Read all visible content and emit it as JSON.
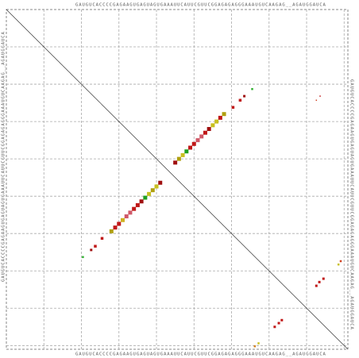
{
  "chart_data": {
    "type": "dotplot",
    "sequence_top": "GAUGUCACCCCGAGAAGUGAGUAGUGAAAUUCAUUCGUUCGGAGAGAGGGAAAUGUCAAGAG__AGAUGGAUCA",
    "sequence_side": "GAUGUCACCCCGAGAAGUGAGUAGUGAAAUUCAUUCGUUCGGAGAGAGGGAAAUGUCAAGAG__AGAUGGAUCA",
    "xlim": [
      0,
      91
    ],
    "ylim": [
      0,
      91
    ],
    "xticks": [
      10,
      20,
      30,
      40,
      50,
      60,
      70,
      80,
      90
    ],
    "yticks": [
      10,
      20,
      30,
      40,
      50,
      60,
      70,
      80,
      90
    ],
    "grid": true,
    "x": [
      45,
      46,
      47,
      48,
      49,
      50,
      51,
      52,
      53,
      54,
      55,
      56,
      57,
      58,
      60.4,
      62.3,
      63.4,
      65.5,
      28,
      29,
      30,
      31,
      32,
      33,
      34,
      35,
      36,
      37,
      38,
      39,
      40,
      41,
      25.5,
      23.7,
      22.6,
      20.4,
      82.6,
      83.4,
      84.5,
      89.1,
      88.5,
      71.5,
      72.6,
      73.4,
      66.2,
      67.2,
      82.6,
      83.6
    ],
    "values": [
      41,
      40,
      39,
      38,
      37,
      36,
      35,
      34,
      33,
      32,
      31,
      30,
      29,
      28,
      26.2,
      24.3,
      23.2,
      21.3,
      59.4,
      58.4,
      57.4,
      56.4,
      55.4,
      54.4,
      53.4,
      52.4,
      51.4,
      50.4,
      49.4,
      48.4,
      47.4,
      46.4,
      61.3,
      63.4,
      64.4,
      66.3,
      74,
      73,
      72.1,
      67.4,
      68.3,
      85,
      84,
      83.2,
      90.2,
      89.4,
      24.3,
      23.2
    ],
    "sizes": [
      5,
      5,
      5,
      5,
      5,
      5,
      5,
      5,
      5,
      5,
      5,
      5,
      5,
      5,
      3.5,
      3.5,
      3,
      2.5,
      5,
      5,
      5,
      5,
      5,
      5,
      5,
      5,
      5,
      5,
      5,
      5,
      5,
      5,
      3.5,
      3.5,
      3,
      2.5,
      3,
      3,
      3,
      2.5,
      2.5,
      3,
      3,
      3,
      2.5,
      2.5,
      1.5,
      1.5
    ],
    "colors": [
      "#a01010",
      "#b0a010",
      "#c8c020",
      "#20a020",
      "#c01818",
      "#c01818",
      "#d05868",
      "#d05868",
      "#c01818",
      "#a01010",
      "#c8c020",
      "#c8c020",
      "#c01818",
      "#b0a010",
      "#c01818",
      "#c01818",
      "#a01010",
      "#30b030",
      "#b0a010",
      "#c01818",
      "#c01818",
      "#d0b020",
      "#d05868",
      "#d05868",
      "#c01818",
      "#c01818",
      "#a01010",
      "#20a020",
      "#c8c020",
      "#b0a010",
      "#c8c020",
      "#a01010",
      "#c01818",
      "#c01818",
      "#a01010",
      "#30b030",
      "#c01818",
      "#c01818",
      "#c01818",
      "#d04020",
      "#c8c020",
      "#c01818",
      "#c01818",
      "#c01818",
      "#d08020",
      "#c8c020",
      "#d04020",
      "#c01818"
    ]
  }
}
